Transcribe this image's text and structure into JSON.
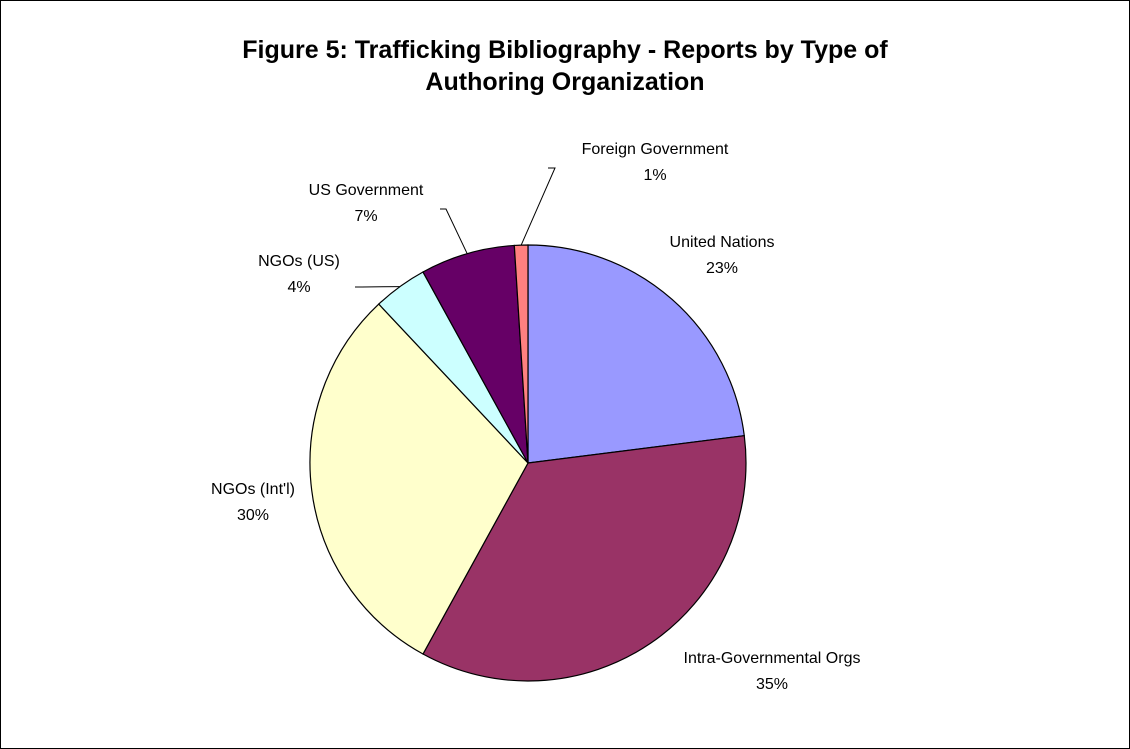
{
  "chart_data": {
    "type": "pie",
    "title_lines": [
      "Figure 5: Trafficking Bibliography - Reports by Type of",
      "Authoring Organization"
    ],
    "slices": [
      {
        "label": "United Nations",
        "percent_label": "23%",
        "value": 23,
        "color": "#9999FF"
      },
      {
        "label": "Intra-Governmental Orgs",
        "percent_label": "35%",
        "value": 35,
        "color": "#993366"
      },
      {
        "label": "NGOs (Int'l)",
        "percent_label": "30%",
        "value": 30,
        "color": "#FFFFCC"
      },
      {
        "label": "NGOs (US)",
        "percent_label": "4%",
        "value": 4,
        "color": "#CCFFFF"
      },
      {
        "label": "US Government",
        "percent_label": "7%",
        "value": 7,
        "color": "#660066"
      },
      {
        "label": "Foreign Government",
        "percent_label": "1%",
        "value": 1,
        "color": "#FF8080"
      }
    ],
    "legend": "none",
    "data_labels": "category name and percent"
  }
}
